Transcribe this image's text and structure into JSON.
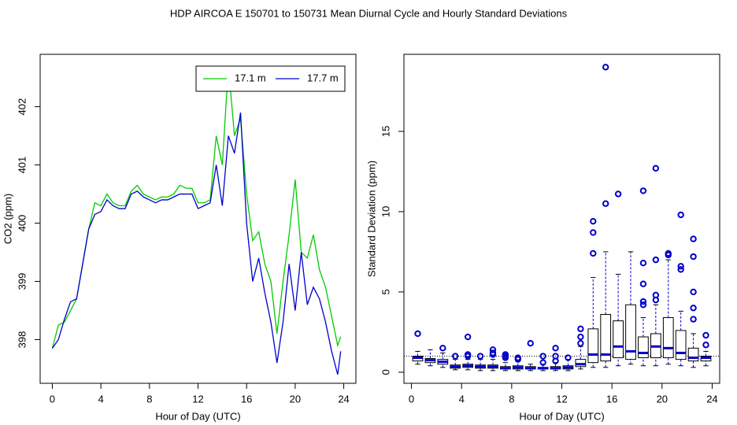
{
  "title": "HDP   AIRCOA E   150701 to 150731   Mean Diurnal Cycle and Hourly Standard Deviations",
  "chart_data": [
    {
      "type": "line",
      "xlabel": "Hour of Day (UTC)",
      "ylabel": "CO2 (ppm)",
      "x": [
        0,
        0.5,
        1,
        1.5,
        2,
        2.5,
        3,
        3.5,
        4,
        4.5,
        5,
        5.5,
        6,
        6.5,
        7,
        7.5,
        8,
        8.5,
        9,
        9.5,
        10,
        10.5,
        11,
        11.5,
        12,
        12.5,
        13,
        13.5,
        14,
        14.5,
        15,
        15.5,
        16,
        16.5,
        17,
        17.5,
        18,
        18.5,
        19,
        19.5,
        20,
        20.5,
        21,
        21.5,
        22,
        22.5,
        23,
        23.5,
        23.75
      ],
      "series": [
        {
          "name": "17.1 m",
          "color": "#00cc00",
          "values": [
            397.85,
            398.25,
            398.3,
            398.5,
            398.7,
            399.3,
            399.9,
            400.35,
            400.3,
            400.5,
            400.35,
            400.3,
            400.3,
            400.55,
            400.65,
            400.5,
            400.45,
            400.4,
            400.45,
            400.45,
            400.5,
            400.65,
            400.6,
            400.6,
            400.35,
            400.35,
            400.4,
            401.5,
            401.0,
            402.7,
            401.5,
            401.8,
            400.5,
            399.7,
            399.85,
            399.3,
            399.0,
            398.1,
            399.0,
            399.8,
            400.75,
            399.5,
            399.4,
            399.8,
            399.2,
            398.9,
            398.4,
            397.9,
            398.05
          ]
        },
        {
          "name": "17.7 m",
          "color": "#0000cc",
          "values": [
            397.85,
            398.0,
            398.35,
            398.65,
            398.7,
            399.3,
            399.9,
            400.15,
            400.2,
            400.4,
            400.3,
            400.25,
            400.25,
            400.5,
            400.55,
            400.45,
            400.4,
            400.35,
            400.4,
            400.4,
            400.45,
            400.5,
            400.5,
            400.5,
            400.25,
            400.3,
            400.35,
            401.0,
            400.3,
            401.5,
            401.2,
            401.9,
            400.0,
            399.0,
            399.4,
            398.8,
            398.3,
            397.6,
            398.3,
            399.3,
            398.5,
            399.5,
            398.6,
            398.9,
            398.7,
            398.3,
            397.8,
            397.4,
            397.8
          ]
        }
      ],
      "xlim": [
        -1,
        25
      ],
      "xticks": [
        0,
        4,
        8,
        12,
        16,
        20,
        24
      ],
      "ylim": [
        397.25,
        402.9
      ],
      "yticks": [
        398,
        399,
        400,
        401,
        402
      ],
      "legend": "top-right"
    },
    {
      "type": "box",
      "xlabel": "Hour of Day (UTC)",
      "ylabel": "Standard Deviation (ppm)",
      "color": "#0000cc",
      "edge_color": "#000000",
      "hline": 1,
      "x": [
        0.5,
        1.5,
        2.5,
        3.5,
        4.5,
        5.5,
        6.5,
        7.5,
        8.5,
        9.5,
        10.5,
        11.5,
        12.5,
        13.5,
        14.5,
        15.5,
        16.5,
        17.5,
        18.5,
        19.5,
        20.5,
        21.5,
        22.5,
        23.5
      ],
      "boxes": [
        {
          "whislo": 0.5,
          "q1": 0.7,
          "med": 0.9,
          "q3": 1.0,
          "whishi": 1.3,
          "fliers": [
            2.4
          ]
        },
        {
          "whislo": 0.4,
          "q1": 0.6,
          "med": 0.75,
          "q3": 0.85,
          "whishi": 1.4,
          "fliers": []
        },
        {
          "whislo": 0.3,
          "q1": 0.5,
          "med": 0.65,
          "q3": 0.8,
          "whishi": 1.2,
          "fliers": [
            1.5
          ]
        },
        {
          "whislo": 0.15,
          "q1": 0.25,
          "med": 0.35,
          "q3": 0.45,
          "whishi": 0.8,
          "fliers": [
            1.0
          ]
        },
        {
          "whislo": 0.15,
          "q1": 0.3,
          "med": 0.4,
          "q3": 0.5,
          "whishi": 0.8,
          "fliers": [
            1.0,
            1.1,
            2.2
          ]
        },
        {
          "whislo": 0.1,
          "q1": 0.25,
          "med": 0.35,
          "q3": 0.45,
          "whishi": 0.8,
          "fliers": [
            1.0
          ]
        },
        {
          "whislo": 0.1,
          "q1": 0.25,
          "med": 0.35,
          "q3": 0.45,
          "whishi": 0.8,
          "fliers": [
            1.1,
            1.2,
            1.4
          ]
        },
        {
          "whislo": 0.1,
          "q1": 0.2,
          "med": 0.25,
          "q3": 0.35,
          "whishi": 0.6,
          "fliers": [
            0.9,
            1.0,
            1.1
          ]
        },
        {
          "whislo": 0.1,
          "q1": 0.2,
          "med": 0.3,
          "q3": 0.4,
          "whishi": 0.7,
          "fliers": [
            0.8,
            0.9
          ]
        },
        {
          "whislo": 0.1,
          "q1": 0.2,
          "med": 0.25,
          "q3": 0.35,
          "whishi": 0.5,
          "fliers": [
            1.8
          ]
        },
        {
          "whislo": 0.1,
          "q1": 0.2,
          "med": 0.25,
          "q3": 0.3,
          "whishi": 0.5,
          "fliers": [
            0.6,
            1.0
          ]
        },
        {
          "whislo": 0.1,
          "q1": 0.2,
          "med": 0.25,
          "q3": 0.35,
          "whishi": 0.6,
          "fliers": [
            0.7,
            1.0,
            1.5
          ]
        },
        {
          "whislo": 0.1,
          "q1": 0.2,
          "med": 0.3,
          "q3": 0.4,
          "whishi": 0.8,
          "fliers": [
            0.9
          ]
        },
        {
          "whislo": 0.2,
          "q1": 0.35,
          "med": 0.5,
          "q3": 0.8,
          "whishi": 1.6,
          "fliers": [
            1.8,
            2.2,
            2.7
          ]
        },
        {
          "whislo": 0.3,
          "q1": 0.6,
          "med": 1.1,
          "q3": 2.7,
          "whishi": 5.9,
          "fliers": [
            7.4,
            8.7,
            9.4
          ]
        },
        {
          "whislo": 0.3,
          "q1": 0.7,
          "med": 1.1,
          "q3": 3.6,
          "whishi": 7.5,
          "fliers": [
            10.5,
            19.0
          ]
        },
        {
          "whislo": 0.4,
          "q1": 0.9,
          "med": 1.6,
          "q3": 3.2,
          "whishi": 6.1,
          "fliers": [
            11.1
          ]
        },
        {
          "whislo": 0.5,
          "q1": 0.8,
          "med": 1.3,
          "q3": 4.2,
          "whishi": 7.5,
          "fliers": []
        },
        {
          "whislo": 0.4,
          "q1": 0.9,
          "med": 1.2,
          "q3": 2.2,
          "whishi": 3.4,
          "fliers": [
            4.2,
            4.4,
            5.5,
            6.8,
            11.3
          ]
        },
        {
          "whislo": 0.4,
          "q1": 0.9,
          "med": 1.6,
          "q3": 2.4,
          "whishi": 4.2,
          "fliers": [
            4.5,
            4.8,
            7.0,
            12.7
          ]
        },
        {
          "whislo": 0.5,
          "q1": 0.9,
          "med": 1.5,
          "q3": 3.4,
          "whishi": 7.0,
          "fliers": [
            7.3,
            7.4
          ]
        },
        {
          "whislo": 0.4,
          "q1": 0.8,
          "med": 1.2,
          "q3": 2.6,
          "whishi": 3.8,
          "fliers": [
            6.4,
            6.6,
            9.8
          ]
        },
        {
          "whislo": 0.3,
          "q1": 0.7,
          "med": 0.9,
          "q3": 1.5,
          "whishi": 2.4,
          "fliers": [
            3.3,
            4.0,
            5.0,
            7.2,
            8.3
          ]
        },
        {
          "whislo": 0.4,
          "q1": 0.7,
          "med": 0.9,
          "q3": 1.0,
          "whishi": 1.3,
          "fliers": [
            1.7,
            2.3
          ]
        }
      ],
      "xlim": [
        -0.6,
        24.6
      ],
      "xticks": [
        0,
        4,
        8,
        12,
        16,
        20,
        24
      ],
      "ylim": [
        -0.69,
        19.8
      ],
      "yticks": [
        0,
        5,
        10,
        15
      ]
    }
  ]
}
